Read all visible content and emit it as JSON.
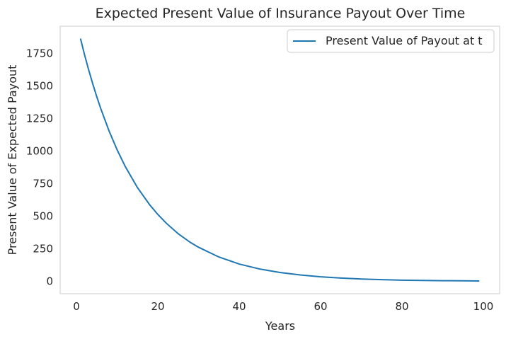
{
  "chart_data": {
    "type": "line",
    "title": "Expected Present Value of Insurance Payout Over Time",
    "xlabel": "Years",
    "ylabel": "Present Value of Expected Payout",
    "xlim": [
      -4,
      104
    ],
    "ylim": [
      -95,
      1960
    ],
    "xticks": [
      0,
      20,
      40,
      60,
      80,
      100
    ],
    "yticks": [
      0,
      250,
      500,
      750,
      1000,
      1250,
      1500,
      1750
    ],
    "grid": false,
    "legend_position": "top-right",
    "series": [
      {
        "name": "Present Value of Payout at t",
        "color": "#1f77b4",
        "x": [
          1,
          2,
          3,
          4,
          5,
          6,
          8,
          10,
          12,
          15,
          18,
          20,
          22,
          25,
          28,
          30,
          35,
          40,
          45,
          50,
          55,
          60,
          65,
          70,
          75,
          80,
          85,
          90,
          95,
          99
        ],
        "y": [
          1865,
          1740,
          1625,
          1518,
          1418,
          1325,
          1157,
          1010,
          882,
          720,
          588,
          514,
          449,
          366,
          299,
          262,
          187,
          133,
          95,
          68,
          49,
          35,
          25,
          18,
          13,
          9,
          7,
          5,
          4,
          3
        ]
      }
    ]
  }
}
